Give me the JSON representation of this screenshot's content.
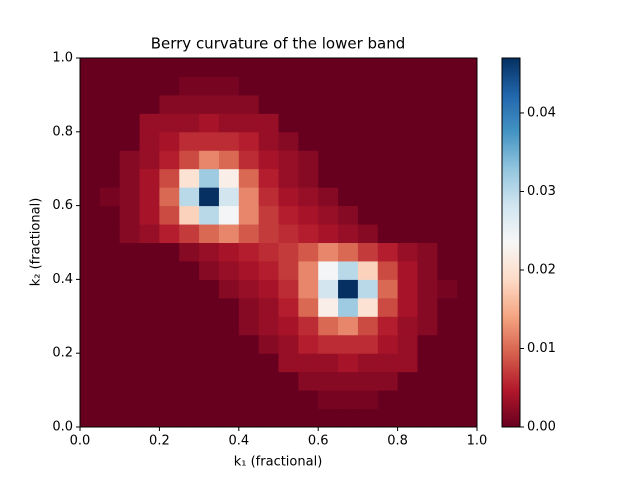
{
  "chart_data": {
    "type": "heatmap",
    "title": "Berry curvature of the lower band",
    "x_label": "k₁ (fractional)",
    "y_label": "k₂ (fractional)",
    "xlim": [
      0,
      1
    ],
    "ylim": [
      0,
      1
    ],
    "xticks": [
      {
        "value": 0,
        "label": "0.0"
      },
      {
        "value": 0.2,
        "label": "0.2"
      },
      {
        "value": 0.4,
        "label": "0.4"
      },
      {
        "value": 0.6,
        "label": "0.6"
      },
      {
        "value": 0.8,
        "label": "0.8"
      },
      {
        "value": 1,
        "label": "1.0"
      }
    ],
    "yticks": [
      {
        "value": 0,
        "label": "0.0"
      },
      {
        "value": 0.2,
        "label": "0.2"
      },
      {
        "value": 0.4,
        "label": "0.4"
      },
      {
        "value": 0.6,
        "label": "0.6"
      },
      {
        "value": 0.8,
        "label": "0.8"
      },
      {
        "value": 1,
        "label": "1.0"
      }
    ],
    "colormap": "RdBu",
    "clim": [
      0,
      0.047
    ],
    "cticks": [
      {
        "value": 0,
        "label": "0.00"
      },
      {
        "value": 0.01,
        "label": "0.01"
      },
      {
        "value": 0.02,
        "label": "0.02"
      },
      {
        "value": 0.03,
        "label": "0.03"
      },
      {
        "value": 0.04,
        "label": "0.04"
      }
    ],
    "z": [
      [
        0,
        0,
        0,
        0,
        0,
        0,
        0,
        0,
        0,
        0,
        0,
        0,
        0,
        0,
        0,
        0,
        0,
        0,
        0,
        0
      ],
      [
        0,
        0,
        0,
        0,
        0,
        0,
        0,
        0,
        0,
        0,
        0,
        0,
        0.001,
        0.001,
        0.001,
        0,
        0,
        0,
        0,
        0
      ],
      [
        0,
        0,
        0,
        0,
        0,
        0,
        0,
        0,
        0,
        0,
        0,
        0.002,
        0.002,
        0.002,
        0.002,
        0.002,
        0,
        0,
        0,
        0
      ],
      [
        0,
        0,
        0,
        0,
        0,
        0,
        0,
        0,
        0,
        0,
        0.003,
        0.003,
        0.003,
        0.004,
        0.003,
        0.003,
        0.003,
        0,
        0,
        0
      ],
      [
        0,
        0,
        0,
        0,
        0,
        0,
        0,
        0,
        0,
        0.002,
        0.003,
        0.005,
        0.006,
        0.006,
        0.006,
        0.004,
        0.003,
        0,
        0,
        0
      ],
      [
        0,
        0,
        0,
        0,
        0,
        0,
        0,
        0,
        0.002,
        0.003,
        0.004,
        0.006,
        0.01,
        0.012,
        0.008,
        0.005,
        0.003,
        0.002,
        0,
        0
      ],
      [
        0,
        0,
        0,
        0,
        0,
        0,
        0,
        0,
        0.002,
        0.003,
        0.005,
        0.01,
        0.022,
        0.032,
        0.02,
        0.008,
        0.004,
        0.002,
        0,
        0
      ],
      [
        0,
        0,
        0,
        0,
        0,
        0,
        0,
        0.002,
        0.003,
        0.004,
        0.006,
        0.012,
        0.028,
        0.047,
        0.03,
        0.01,
        0.004,
        0.002,
        0.001,
        0
      ],
      [
        0,
        0,
        0,
        0,
        0,
        0,
        0.002,
        0.003,
        0.004,
        0.005,
        0.007,
        0.012,
        0.024,
        0.03,
        0.018,
        0.008,
        0.004,
        0.002,
        0,
        0
      ],
      [
        0,
        0,
        0,
        0,
        0,
        0.002,
        0.003,
        0.004,
        0.005,
        0.006,
        0.007,
        0.009,
        0.012,
        0.01,
        0.007,
        0.005,
        0.003,
        0.002,
        0,
        0
      ],
      [
        0,
        0,
        0.002,
        0.003,
        0.005,
        0.007,
        0.01,
        0.012,
        0.009,
        0.007,
        0.006,
        0.005,
        0.004,
        0.003,
        0.002,
        0,
        0,
        0,
        0,
        0
      ],
      [
        0,
        0,
        0.002,
        0.004,
        0.008,
        0.018,
        0.03,
        0.024,
        0.012,
        0.007,
        0.005,
        0.004,
        0.003,
        0.002,
        0,
        0,
        0,
        0,
        0,
        0
      ],
      [
        0,
        0.001,
        0.002,
        0.004,
        0.01,
        0.03,
        0.047,
        0.028,
        0.012,
        0.006,
        0.004,
        0.003,
        0.002,
        0,
        0,
        0,
        0,
        0,
        0,
        0
      ],
      [
        0,
        0,
        0.002,
        0.004,
        0.008,
        0.02,
        0.032,
        0.022,
        0.01,
        0.005,
        0.003,
        0.002,
        0,
        0,
        0,
        0,
        0,
        0,
        0,
        0
      ],
      [
        0,
        0,
        0.002,
        0.003,
        0.005,
        0.008,
        0.012,
        0.01,
        0.006,
        0.004,
        0.003,
        0.002,
        0,
        0,
        0,
        0,
        0,
        0,
        0,
        0
      ],
      [
        0,
        0,
        0,
        0.003,
        0.004,
        0.006,
        0.006,
        0.006,
        0.005,
        0.003,
        0.002,
        0,
        0,
        0,
        0,
        0,
        0,
        0,
        0,
        0
      ],
      [
        0,
        0,
        0,
        0.003,
        0.003,
        0.003,
        0.004,
        0.003,
        0.003,
        0.003,
        0,
        0,
        0,
        0,
        0,
        0,
        0,
        0,
        0,
        0
      ],
      [
        0,
        0,
        0,
        0,
        0.002,
        0.002,
        0.002,
        0.002,
        0.002,
        0,
        0,
        0,
        0,
        0,
        0,
        0,
        0,
        0,
        0,
        0
      ],
      [
        0,
        0,
        0,
        0,
        0,
        0.001,
        0.001,
        0.001,
        0,
        0,
        0,
        0,
        0,
        0,
        0,
        0,
        0,
        0,
        0,
        0
      ],
      [
        0,
        0,
        0,
        0,
        0,
        0,
        0,
        0,
        0,
        0,
        0,
        0,
        0,
        0,
        0,
        0,
        0,
        0,
        0,
        0
      ]
    ]
  }
}
